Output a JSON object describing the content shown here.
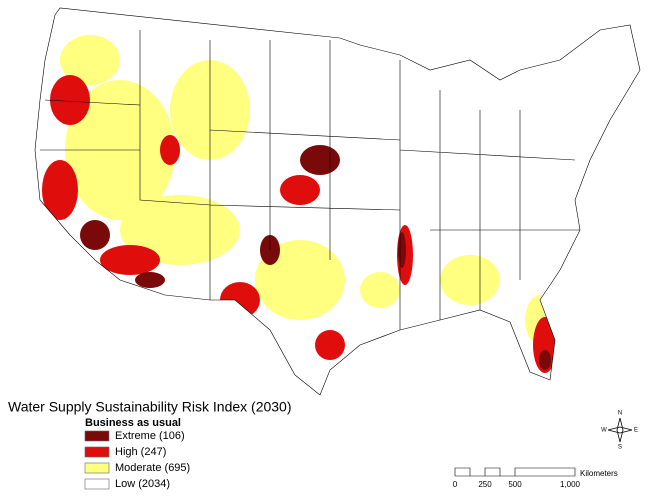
{
  "map": {
    "title": "Water Supply Sustainability Risk Index (2030)",
    "legend": {
      "title": "Business as usual",
      "items": [
        {
          "label": "Extreme (106)",
          "color": "#7a0a0a"
        },
        {
          "label": "High (247)",
          "color": "#e00d0d"
        },
        {
          "label": "Moderate (695)",
          "color": "#ffff80"
        },
        {
          "label": "Low (2034)",
          "color": "#ffffff"
        }
      ]
    },
    "scale_bar": {
      "unit": "Kilometers",
      "labels": [
        "0",
        "250",
        "500",
        "1,000"
      ]
    },
    "compass": {
      "north": "N",
      "south": "S",
      "east": "E",
      "west": "W"
    }
  }
}
